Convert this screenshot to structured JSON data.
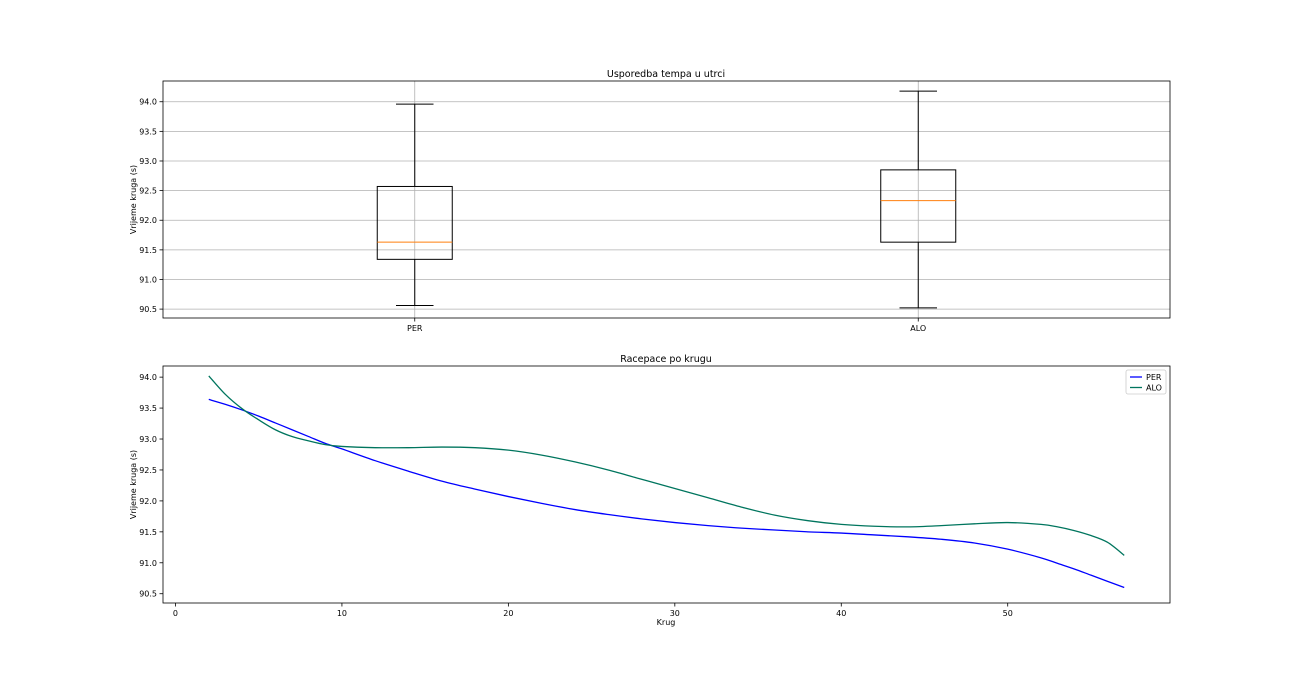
{
  "chart_data": [
    {
      "type": "boxplot",
      "title": "Usporedba tempa u utrci",
      "xlabel": "",
      "ylabel": "Vrijeme kruga (s)",
      "ylim": [
        90.35,
        94.35
      ],
      "yticks": [
        90.5,
        91.0,
        91.5,
        92.0,
        92.5,
        93.0,
        93.5,
        94.0
      ],
      "ytick_labels": [
        "90.5",
        "91.0",
        "91.5",
        "92.0",
        "92.5",
        "93.0",
        "93.5",
        "94.0"
      ],
      "grid": true,
      "categories": [
        "PER",
        "ALO"
      ],
      "boxes": [
        {
          "name": "PER",
          "whislo": 90.56,
          "q1": 91.34,
          "median": 91.63,
          "q3": 92.57,
          "whishi": 93.96
        },
        {
          "name": "ALO",
          "whislo": 90.52,
          "q1": 91.63,
          "median": 92.33,
          "q3": 92.85,
          "whishi": 94.18
        }
      ],
      "colors": {
        "box": "#000000",
        "median": "#ff7f0e",
        "grid": "#b0b0b0"
      }
    },
    {
      "type": "line",
      "title": "Racepace po krugu",
      "xlabel": "Krug",
      "ylabel": "Vrijeme kruga (s)",
      "xlim": [
        -0.75,
        59.75
      ],
      "ylim": [
        90.35,
        94.18
      ],
      "xticks": [
        0,
        10,
        20,
        30,
        40,
        50
      ],
      "xtick_labels": [
        "0",
        "10",
        "20",
        "30",
        "40",
        "50"
      ],
      "yticks": [
        90.5,
        91.0,
        91.5,
        92.0,
        92.5,
        93.0,
        93.5,
        94.0
      ],
      "ytick_labels": [
        "90.5",
        "91.0",
        "91.5",
        "92.0",
        "92.5",
        "93.0",
        "93.5",
        "94.0"
      ],
      "grid": false,
      "legend": "top-right",
      "x": [
        2,
        3,
        4,
        5,
        6,
        7,
        8,
        9,
        10,
        12,
        14,
        16,
        18,
        20,
        22,
        24,
        26,
        28,
        30,
        32,
        34,
        36,
        38,
        40,
        42,
        44,
        46,
        48,
        50,
        52,
        53,
        54,
        55,
        56,
        57
      ],
      "series": [
        {
          "name": "PER",
          "color": "#0000ff",
          "values": [
            93.64,
            93.56,
            93.47,
            93.37,
            93.26,
            93.15,
            93.04,
            92.93,
            92.84,
            92.65,
            92.48,
            92.32,
            92.19,
            92.07,
            91.96,
            91.86,
            91.78,
            91.71,
            91.65,
            91.6,
            91.56,
            91.53,
            91.5,
            91.48,
            91.45,
            91.42,
            91.38,
            91.32,
            91.22,
            91.08,
            90.99,
            90.9,
            90.8,
            90.7,
            90.6
          ]
        },
        {
          "name": "ALO",
          "color": "#00755e",
          "values": [
            94.02,
            93.72,
            93.49,
            93.31,
            93.15,
            93.04,
            92.97,
            92.91,
            92.88,
            92.86,
            92.86,
            92.87,
            92.86,
            92.82,
            92.74,
            92.63,
            92.5,
            92.35,
            92.2,
            92.05,
            91.9,
            91.77,
            91.68,
            91.62,
            91.59,
            91.58,
            91.6,
            91.63,
            91.65,
            91.62,
            91.58,
            91.52,
            91.44,
            91.33,
            91.12
          ]
        }
      ]
    }
  ]
}
